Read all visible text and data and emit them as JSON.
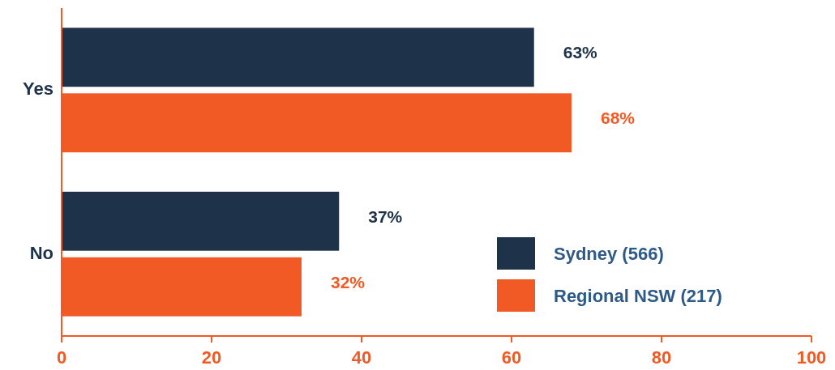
{
  "chart_data": {
    "type": "bar",
    "orientation": "horizontal",
    "categories": [
      "Yes",
      "No"
    ],
    "series": [
      {
        "name": "Sydney (566)",
        "color": "#1e3249",
        "values": [
          63,
          37
        ],
        "value_labels": [
          "63%",
          "37%"
        ]
      },
      {
        "name": "Regional NSW (217)",
        "color": "#f15a24",
        "values": [
          68,
          32
        ],
        "value_labels": [
          "68%",
          "32%"
        ]
      }
    ],
    "xlim": [
      0,
      100
    ],
    "xticks": [
      0,
      20,
      40,
      60,
      80,
      100
    ],
    "grid": false,
    "legend": "bottom right"
  }
}
